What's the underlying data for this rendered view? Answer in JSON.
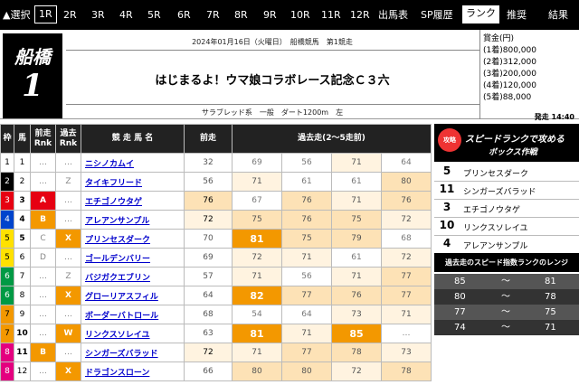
{
  "nav": {
    "select_label": "▲選択",
    "races": [
      "1R",
      "2R",
      "3R",
      "4R",
      "5R",
      "6R",
      "7R",
      "8R",
      "9R",
      "10R",
      "11R",
      "12R"
    ],
    "selected_race": "1R",
    "menu": [
      "出馬表",
      "SP履歴",
      "ランク",
      "推奨",
      "結果"
    ],
    "active_menu": "ランク"
  },
  "race": {
    "venue": "船橋",
    "number": "1",
    "date_line": "2024年01月16日（火曜日）　船橋競馬　第1競走",
    "name": "はじまるよ！ウマ娘コラボレース記念Ｃ３六",
    "conditions": "サラブレッド系　一般　ダート1200m　左"
  },
  "prize": {
    "label": "賞金(円)",
    "lines": [
      "(1着)800,000",
      "(2着)312,000",
      "(3着)200,000",
      "(4着)120,000",
      "(5着)88,000"
    ],
    "post_time": "発走 14:40"
  },
  "table": {
    "headers": [
      "枠",
      "馬",
      "前走\nRnk",
      "過去\nRnk",
      "競 走 馬 名",
      "前走",
      "過去走(2〜5走前)"
    ],
    "rows": [
      {
        "waku": "1",
        "uma": "1",
        "prev_rank": "…",
        "past_rank": "…",
        "name": "ニシノカムイ",
        "last": "32",
        "past": [
          "69",
          "56",
          "71",
          "64"
        ]
      },
      {
        "waku": "2",
        "uma": "2",
        "prev_rank": "…",
        "past_rank": "Z",
        "name": "タイキフリード",
        "last": "56",
        "past": [
          "71",
          "61",
          "61",
          "80"
        ]
      },
      {
        "waku": "3",
        "uma": "3",
        "prev_rank": "A",
        "past_rank": "…",
        "name": "エチゴノウタゲ",
        "last": "76",
        "past": [
          "67",
          "76",
          "71",
          "76"
        ]
      },
      {
        "waku": "4",
        "uma": "4",
        "prev_rank": "B",
        "past_rank": "…",
        "name": "アレアンサンプル",
        "last": "72",
        "past": [
          "75",
          "76",
          "75",
          "72"
        ]
      },
      {
        "waku": "5",
        "uma": "5",
        "prev_rank": "C",
        "past_rank": "X",
        "name": "プリンセスダーク",
        "last": "70",
        "past": [
          "81",
          "75",
          "79",
          "68"
        ]
      },
      {
        "waku": "5",
        "uma": "6",
        "prev_rank": "D",
        "past_rank": "…",
        "name": "ゴールデンバリー",
        "last": "69",
        "past": [
          "72",
          "71",
          "61",
          "72"
        ]
      },
      {
        "waku": "6",
        "uma": "7",
        "prev_rank": "…",
        "past_rank": "Z",
        "name": "バジガクエブリン",
        "last": "57",
        "past": [
          "71",
          "56",
          "71",
          "77"
        ]
      },
      {
        "waku": "6",
        "uma": "8",
        "prev_rank": "…",
        "past_rank": "X",
        "name": "グローリアスフィル",
        "last": "64",
        "past": [
          "82",
          "77",
          "76",
          "77"
        ]
      },
      {
        "waku": "7",
        "uma": "9",
        "prev_rank": "…",
        "past_rank": "…",
        "name": "ボーダーバトロール",
        "last": "68",
        "past": [
          "54",
          "64",
          "73",
          "71"
        ]
      },
      {
        "waku": "7",
        "uma": "10",
        "prev_rank": "…",
        "past_rank": "W",
        "name": "リンクスソレイユ",
        "last": "63",
        "past": [
          "81",
          "71",
          "85",
          "…"
        ]
      },
      {
        "waku": "8",
        "uma": "11",
        "prev_rank": "B",
        "past_rank": "…",
        "name": "シンガーズバラッド",
        "last": "72",
        "past": [
          "71",
          "77",
          "78",
          "73"
        ]
      },
      {
        "waku": "8",
        "uma": "12",
        "prev_rank": "…",
        "past_rank": "X",
        "name": "ドラゴンスローン",
        "last": "66",
        "past": [
          "80",
          "80",
          "72",
          "78"
        ]
      }
    ]
  },
  "sidebar": {
    "badge": "攻略",
    "title1": "スピードランクで攻める",
    "title2": "ボックス作戦",
    "picks": [
      {
        "num": "5",
        "name": "プリンセスダーク"
      },
      {
        "num": "11",
        "name": "シンガーズバラッド"
      },
      {
        "num": "3",
        "name": "エチゴノウタゲ"
      },
      {
        "num": "10",
        "name": "リンクスソレイユ"
      },
      {
        "num": "4",
        "name": "アレアンサンプル"
      }
    ],
    "range_title": "過去走のスピード指数ランクのレンジ",
    "ranges": [
      {
        "lo": "85",
        "tilde": "〜",
        "hi": "81"
      },
      {
        "lo": "80",
        "tilde": "〜",
        "hi": "78"
      },
      {
        "lo": "77",
        "tilde": "〜",
        "hi": "75"
      },
      {
        "lo": "74",
        "tilde": "〜",
        "hi": "71"
      }
    ]
  },
  "colors": {
    "waku": {
      "1": "#ffffff",
      "2": "#000000",
      "3": "#e60012",
      "4": "#0044cc",
      "5": "#ffe100",
      "6": "#009944",
      "7": "#f39800",
      "8": "#e4007f"
    },
    "rank_A": "#e60012",
    "rank_B": "#f39800",
    "rank_X": "#f39800",
    "rank_W": "#f39800",
    "score_top": "#f39800",
    "score_high": "#fde2b6",
    "score_mid": "#fff3e0"
  }
}
